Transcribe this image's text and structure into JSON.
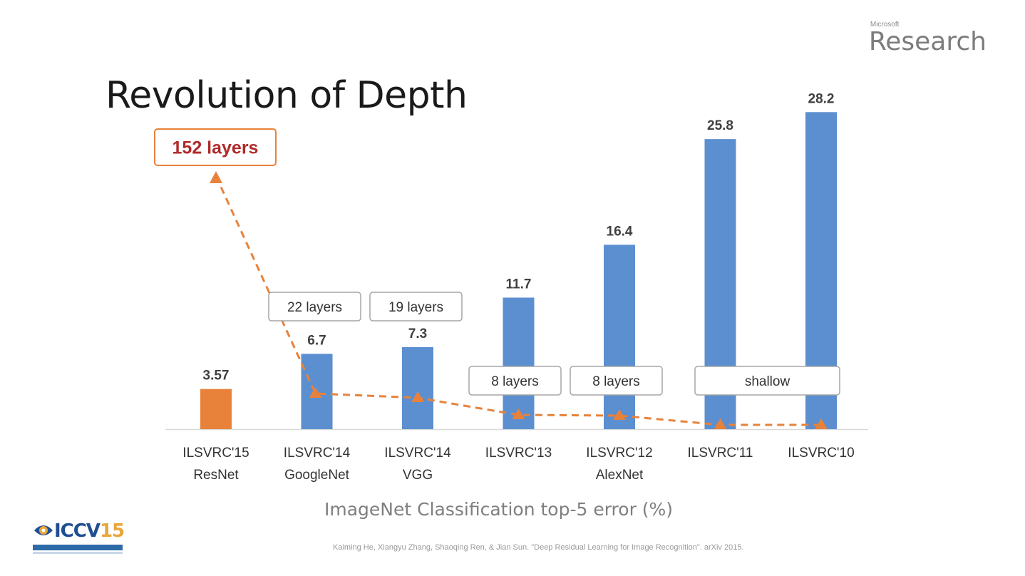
{
  "slide": {
    "title": "Revolution of Depth",
    "brand_small": "Microsoft",
    "brand_big": "Research",
    "caption": "ImageNet Classification top-5 error (%)",
    "citation": "Kaiming He, Xiangyu Zhang, Shaoqing Ren, & Jian Sun. \"Deep Residual Learning for Image Recognition\". arXiv 2015.",
    "conference_logo": {
      "prefix": "ICCV",
      "suffix": "15"
    }
  },
  "chart_data": {
    "type": "bar",
    "categories": [
      [
        "ILSVRC'15",
        "ResNet"
      ],
      [
        "ILSVRC'14",
        "GoogleNet"
      ],
      [
        "ILSVRC'14",
        "VGG"
      ],
      [
        "ILSVRC'13"
      ],
      [
        "ILSVRC'12",
        "AlexNet"
      ],
      [
        "ILSVRC'11"
      ],
      [
        "ILSVRC'10"
      ]
    ],
    "values": [
      3.57,
      6.7,
      7.3,
      11.7,
      16.4,
      25.8,
      28.2
    ],
    "value_labels": [
      "3.57",
      "6.7",
      "7.3",
      "11.7",
      "16.4",
      "25.8",
      "28.2"
    ],
    "bar_colors": [
      "#e8823b",
      "#5b8fd0",
      "#5b8fd0",
      "#5b8fd0",
      "#5b8fd0",
      "#5b8fd0",
      "#5b8fd0"
    ],
    "ylim": [
      0,
      30
    ],
    "depth_annotations": [
      {
        "bar_index": 0,
        "text": "152 layers",
        "highlight": true
      },
      {
        "bar_index": 1,
        "text": "22 layers"
      },
      {
        "bar_index": 2,
        "text": "19 layers"
      },
      {
        "bar_index": 3,
        "text": "8 layers"
      },
      {
        "bar_index": 4,
        "text": "8 layers"
      },
      {
        "bar_index": [
          5,
          6
        ],
        "text": "shallow"
      }
    ],
    "trend_line": {
      "style": "dashed",
      "marker": "triangle",
      "color": "#e8823b"
    },
    "grid": false,
    "legend": "none"
  }
}
